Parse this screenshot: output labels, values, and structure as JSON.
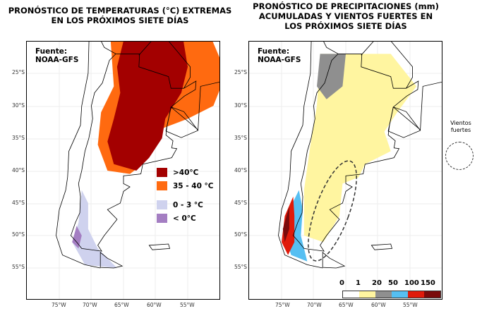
{
  "left": {
    "title": "PRONÓSTICO DE TEMPERATURAS (°C) EXTREMAS EN LOS PRÓXIMOS SIETE DÍAS",
    "source": "Fuente:\nNOAA-GFS",
    "legend": [
      {
        "label": ">40°C",
        "color": "#a30000"
      },
      {
        "label": "35 - 40 °C",
        "color": "#ff6a10"
      },
      {
        "label": "0 - 3 °C",
        "color": "#cfd2ee"
      },
      {
        "label": "< 0°C",
        "color": "#a47ec2"
      }
    ]
  },
  "right": {
    "title": "PRONÓSTICO DE PRECIPITACIONES (mm) ACUMULADAS Y VIENTOS FUERTES EN LOS PRÓXIMOS SIETE DÍAS",
    "source": "Fuente:\nNOAA-GFS",
    "colorbar": {
      "ticks": [
        "0",
        "1",
        "20",
        "50",
        "100",
        "150"
      ],
      "colors": [
        "#ffffff",
        "#fff5a0",
        "#8f8f8f",
        "#56bff2",
        "#e01a0a",
        "#7a0a0a"
      ]
    }
  },
  "winds_legend": "Vientos\nfuertes",
  "lat_ticks": [
    "25°S",
    "30°S",
    "35°S",
    "40°S",
    "45°S",
    "50°S",
    "55°S"
  ],
  "lon_ticks": [
    "75°W",
    "70°W",
    "65°W",
    "60°W",
    "55°W"
  ]
}
